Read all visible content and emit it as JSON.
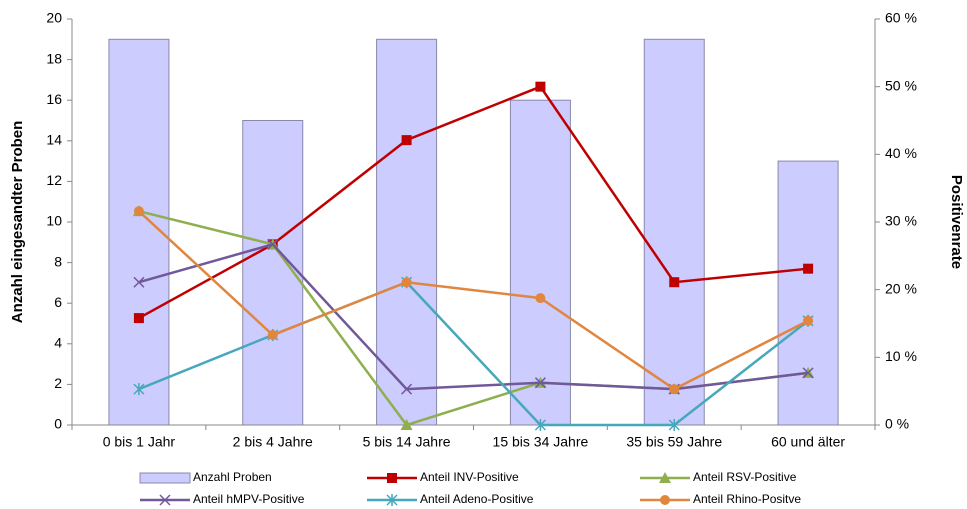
{
  "chart_data": {
    "type": "bar-line",
    "categories": [
      "0 bis 1 Jahr",
      "2 bis 4 Jahre",
      "5 bis 14 Jahre",
      "15 bis 34 Jahre",
      "35 bis 59 Jahre",
      "60 und älter"
    ],
    "y_label": "Anzahl eingesandter Proben",
    "y2_label": "Positivenrate",
    "ylim": [
      0,
      20
    ],
    "yticks": [
      0,
      2,
      4,
      6,
      8,
      10,
      12,
      14,
      16,
      18,
      20
    ],
    "y2lim": [
      0,
      60
    ],
    "y2ticks": [
      {
        "value": 0,
        "label": "0 %"
      },
      {
        "value": 10,
        "label": "10 %"
      },
      {
        "value": 20,
        "label": "20 %"
      },
      {
        "value": 30,
        "label": "30 %"
      },
      {
        "value": 40,
        "label": "40 %"
      },
      {
        "value": 50,
        "label": "50 %"
      },
      {
        "value": 60,
        "label": "60 %"
      }
    ],
    "series": [
      {
        "name": "Anzahl Proben",
        "type": "bar",
        "color": "#ccccff",
        "values": [
          19,
          15,
          19,
          16,
          19,
          13
        ]
      },
      {
        "name": "Anteil INV-Positive",
        "type": "line",
        "axis": "y2",
        "marker": "square",
        "color": "#c00000",
        "values": [
          15.8,
          26.7,
          42.1,
          50,
          21.1,
          23.1
        ]
      },
      {
        "name": "Anteil RSV-Positive",
        "type": "line",
        "axis": "y2",
        "marker": "triangle",
        "color": "#8faf4f",
        "values": [
          31.6,
          26.7,
          0,
          6.25,
          5.3,
          7.7
        ]
      },
      {
        "name": "Anteil hMPV-Positive",
        "type": "line",
        "axis": "y2",
        "marker": "x",
        "color": "#71589a",
        "values": [
          21.1,
          26.7,
          5.3,
          6.25,
          5.3,
          7.7
        ]
      },
      {
        "name": "Anteil Adeno-Positive",
        "type": "line",
        "axis": "y2",
        "marker": "star",
        "color": "#46a7bd",
        "values": [
          5.3,
          13.3,
          21.1,
          0,
          0,
          15.4
        ]
      },
      {
        "name": "Anteil Rhino-Positve",
        "type": "line",
        "axis": "y2",
        "marker": "circle",
        "color": "#e0863e",
        "values": [
          31.6,
          13.3,
          21.1,
          18.75,
          5.3,
          15.4
        ]
      }
    ]
  }
}
